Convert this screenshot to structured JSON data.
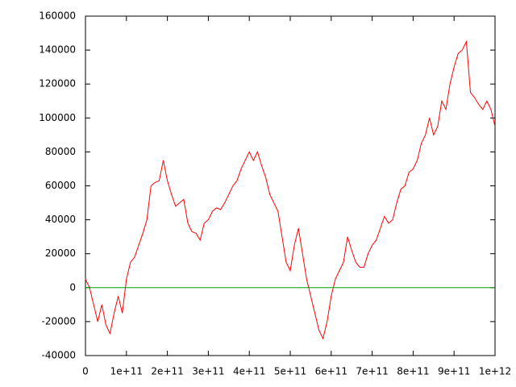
{
  "chart_data": {
    "type": "line",
    "xlim": [
      0,
      1000000000000
    ],
    "ylim": [
      -40000,
      160000
    ],
    "xticks": [
      0,
      {
        "value": 100000000000,
        "label": "1e+11"
      },
      {
        "value": 200000000000,
        "label": "2e+11"
      },
      {
        "value": 300000000000,
        "label": "3e+11"
      },
      {
        "value": 400000000000,
        "label": "4e+11"
      },
      {
        "value": 500000000000,
        "label": "5e+11"
      },
      {
        "value": 600000000000,
        "label": "6e+11"
      },
      {
        "value": 700000000000,
        "label": "7e+11"
      },
      {
        "value": 800000000000,
        "label": "8e+11"
      },
      {
        "value": 900000000000,
        "label": "9e+11"
      },
      {
        "value": 1000000000000,
        "label": "1e+12"
      }
    ],
    "yticks": [
      -40000,
      -20000,
      0,
      20000,
      40000,
      60000,
      80000,
      100000,
      120000,
      140000,
      160000
    ],
    "series": [
      {
        "color": "#ff0000",
        "x": [
          0,
          10000000000,
          20000000000,
          30000000000,
          40000000000,
          50000000000,
          60000000000,
          70000000000,
          80000000000,
          90000000000,
          100000000000,
          110000000000,
          120000000000,
          130000000000,
          140000000000,
          150000000000,
          160000000000,
          170000000000,
          180000000000,
          190000000000,
          200000000000,
          210000000000,
          220000000000,
          230000000000,
          240000000000,
          250000000000,
          260000000000,
          270000000000,
          280000000000,
          290000000000,
          300000000000,
          310000000000,
          320000000000,
          330000000000,
          340000000000,
          350000000000,
          360000000000,
          370000000000,
          380000000000,
          390000000000,
          400000000000,
          410000000000,
          420000000000,
          430000000000,
          440000000000,
          450000000000,
          460000000000,
          470000000000,
          480000000000,
          490000000000,
          500000000000,
          510000000000,
          520000000000,
          530000000000,
          540000000000,
          550000000000,
          560000000000,
          570000000000,
          580000000000,
          590000000000,
          600000000000,
          610000000000,
          620000000000,
          630000000000,
          640000000000,
          650000000000,
          660000000000,
          670000000000,
          680000000000,
          690000000000,
          700000000000,
          710000000000,
          720000000000,
          730000000000,
          740000000000,
          750000000000,
          760000000000,
          770000000000,
          780000000000,
          790000000000,
          800000000000,
          810000000000,
          820000000000,
          830000000000,
          840000000000,
          850000000000,
          860000000000,
          870000000000,
          880000000000,
          890000000000,
          900000000000,
          910000000000,
          920000000000,
          930000000000,
          940000000000,
          950000000000,
          960000000000,
          970000000000,
          980000000000,
          990000000000,
          1000000000000
        ],
        "values": [
          5000,
          0,
          -10000,
          -20000,
          -10000,
          -22000,
          -27000,
          -15000,
          -5000,
          -15000,
          5000,
          15000,
          18000,
          25000,
          32000,
          40000,
          60000,
          62000,
          63000,
          75000,
          63000,
          55000,
          48000,
          50000,
          52000,
          38000,
          33000,
          32000,
          28000,
          38000,
          40000,
          45000,
          47000,
          46000,
          50000,
          55000,
          60000,
          63000,
          70000,
          75000,
          80000,
          75000,
          80000,
          72000,
          65000,
          55000,
          50000,
          45000,
          30000,
          15000,
          10000,
          25000,
          35000,
          20000,
          5000,
          -5000,
          -15000,
          -25000,
          -30000,
          -20000,
          -5000,
          5000,
          10000,
          15000,
          30000,
          22000,
          15000,
          12000,
          12000,
          20000,
          25000,
          28000,
          35000,
          42000,
          38000,
          40000,
          50000,
          58000,
          60000,
          68000,
          70000,
          75000,
          85000,
          90000,
          100000,
          90000,
          95000,
          110000,
          105000,
          120000,
          130000,
          138000,
          140000,
          145000,
          115000,
          112000,
          108000,
          105000,
          110000,
          105000,
          95000
        ]
      },
      {
        "color": "#00a000",
        "x": [
          0,
          1000000000000
        ],
        "values": [
          0,
          0
        ]
      }
    ]
  }
}
